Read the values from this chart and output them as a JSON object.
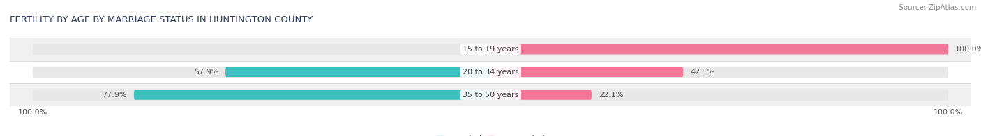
{
  "title": "FERTILITY BY AGE BY MARRIAGE STATUS IN HUNTINGTON COUNTY",
  "source": "Source: ZipAtlas.com",
  "categories": [
    "15 to 19 years",
    "20 to 34 years",
    "35 to 50 years"
  ],
  "married_pct": [
    0.0,
    57.9,
    77.9
  ],
  "unmarried_pct": [
    100.0,
    42.1,
    22.1
  ],
  "married_color": "#40bfbf",
  "unmarried_color": "#f07898",
  "bar_bg_color": "#e8e8e8",
  "bar_height": 0.52,
  "label_fontsize": 8.0,
  "title_fontsize": 9.5,
  "source_fontsize": 7.5,
  "legend_fontsize": 8.5,
  "background_color": "#ffffff",
  "row_bg_even": "#f0f0f0",
  "row_bg_odd": "#ffffff"
}
